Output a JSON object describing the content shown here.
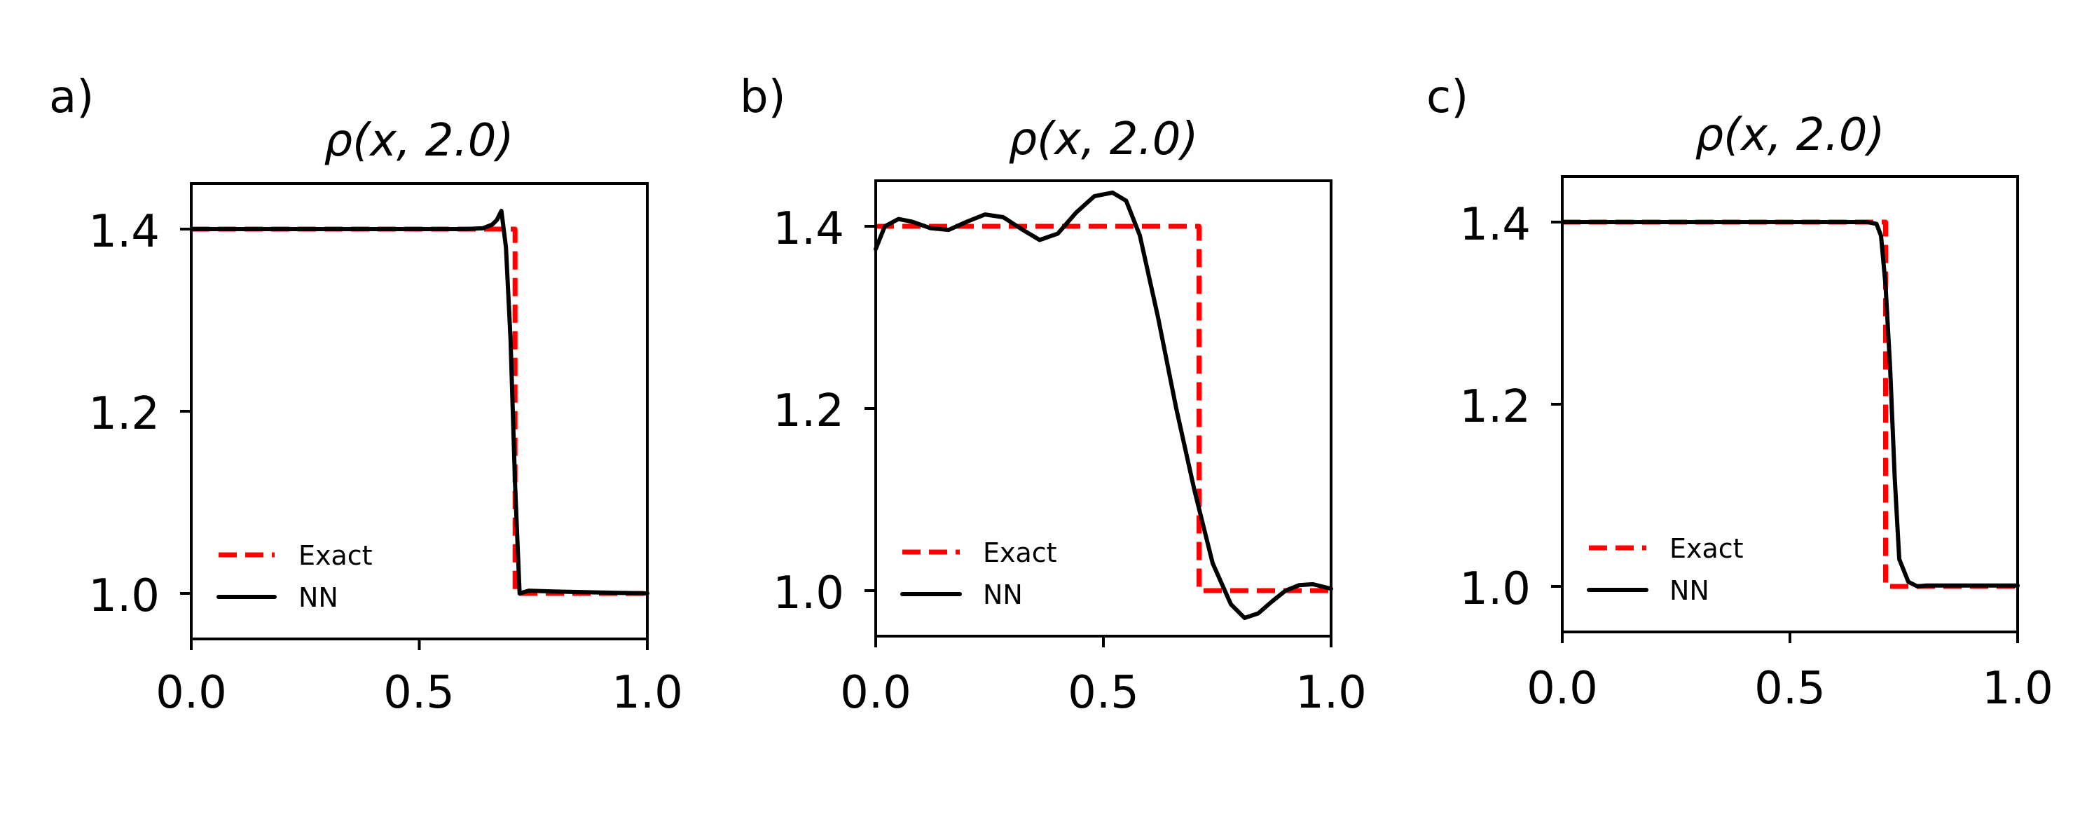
{
  "colors": {
    "exact": "#ff0000",
    "nn": "#000000"
  },
  "chart_data": [
    {
      "type": "line",
      "panel_label": "a)",
      "title": "ρ(x, 2.0)",
      "xlabel": "",
      "ylabel": "",
      "xlim": [
        0.0,
        1.0
      ],
      "ylim": [
        0.95,
        1.45
      ],
      "xticks": [
        0.0,
        0.5,
        1.0
      ],
      "xtick_labels": [
        "0.0",
        "0.5",
        "1.0"
      ],
      "yticks": [
        1.0,
        1.2,
        1.4
      ],
      "ytick_labels": [
        "1.0",
        "1.2",
        "1.4"
      ],
      "legend": {
        "location": "lower-left",
        "entries": [
          "Exact",
          "NN"
        ]
      },
      "series": [
        {
          "name": "Exact",
          "style": "dashed",
          "x": [
            0.0,
            0.71,
            0.71,
            1.0
          ],
          "y": [
            1.4,
            1.4,
            1.0,
            1.0
          ]
        },
        {
          "name": "NN",
          "style": "solid",
          "x": [
            0.0,
            0.1,
            0.2,
            0.3,
            0.4,
            0.5,
            0.6,
            0.64,
            0.66,
            0.67,
            0.68,
            0.69,
            0.7,
            0.71,
            0.72,
            0.74,
            0.8,
            0.9,
            1.0
          ],
          "y": [
            1.4,
            1.4,
            1.4,
            1.4,
            1.4,
            1.4,
            1.4,
            1.401,
            1.405,
            1.41,
            1.42,
            1.38,
            1.28,
            1.12,
            1.0,
            1.003,
            1.002,
            1.001,
            1.0
          ]
        }
      ]
    },
    {
      "type": "line",
      "panel_label": "b)",
      "title": "ρ(x, 2.0)",
      "xlabel": "",
      "ylabel": "",
      "xlim": [
        0.0,
        1.0
      ],
      "ylim": [
        0.95,
        1.45
      ],
      "xticks": [
        0.0,
        0.5,
        1.0
      ],
      "xtick_labels": [
        "0.0",
        "0.5",
        "1.0"
      ],
      "yticks": [
        1.0,
        1.2,
        1.4
      ],
      "ytick_labels": [
        "1.0",
        "1.2",
        "1.4"
      ],
      "legend": {
        "location": "lower-left",
        "entries": [
          "Exact",
          "NN"
        ]
      },
      "series": [
        {
          "name": "Exact",
          "style": "dashed",
          "x": [
            0.0,
            0.71,
            0.71,
            1.0
          ],
          "y": [
            1.4,
            1.4,
            1.0,
            1.0
          ]
        },
        {
          "name": "NN",
          "style": "solid",
          "x": [
            0.0,
            0.02,
            0.05,
            0.08,
            0.12,
            0.16,
            0.2,
            0.24,
            0.28,
            0.32,
            0.36,
            0.4,
            0.44,
            0.48,
            0.52,
            0.55,
            0.58,
            0.62,
            0.66,
            0.7,
            0.74,
            0.78,
            0.81,
            0.84,
            0.87,
            0.9,
            0.93,
            0.96,
            1.0
          ],
          "y": [
            1.375,
            1.4,
            1.408,
            1.405,
            1.398,
            1.396,
            1.405,
            1.413,
            1.41,
            1.397,
            1.385,
            1.392,
            1.415,
            1.433,
            1.437,
            1.428,
            1.39,
            1.3,
            1.2,
            1.11,
            1.03,
            0.985,
            0.97,
            0.975,
            0.988,
            1.0,
            1.006,
            1.007,
            1.002
          ]
        }
      ]
    },
    {
      "type": "line",
      "panel_label": "c)",
      "title": "ρ(x, 2.0)",
      "xlabel": "",
      "ylabel": "",
      "xlim": [
        0.0,
        1.0
      ],
      "ylim": [
        0.95,
        1.45
      ],
      "xticks": [
        0.0,
        0.5,
        1.0
      ],
      "xtick_labels": [
        "0.0",
        "0.5",
        "1.0"
      ],
      "yticks": [
        1.0,
        1.2,
        1.4
      ],
      "ytick_labels": [
        "1.0",
        "1.2",
        "1.4"
      ],
      "legend": {
        "location": "lower-left",
        "entries": [
          "Exact",
          "NN"
        ]
      },
      "series": [
        {
          "name": "Exact",
          "style": "dashed",
          "x": [
            0.0,
            0.71,
            0.71,
            1.0
          ],
          "y": [
            1.4,
            1.4,
            1.0,
            1.0
          ]
        },
        {
          "name": "NN",
          "style": "solid",
          "x": [
            0.0,
            0.2,
            0.4,
            0.6,
            0.67,
            0.69,
            0.7,
            0.71,
            0.72,
            0.73,
            0.74,
            0.76,
            0.78,
            0.8,
            0.9,
            1.0
          ],
          "y": [
            1.4,
            1.4,
            1.4,
            1.4,
            1.4,
            1.398,
            1.385,
            1.33,
            1.24,
            1.12,
            1.03,
            1.005,
            1.0,
            1.001,
            1.001,
            1.001
          ]
        }
      ]
    }
  ]
}
